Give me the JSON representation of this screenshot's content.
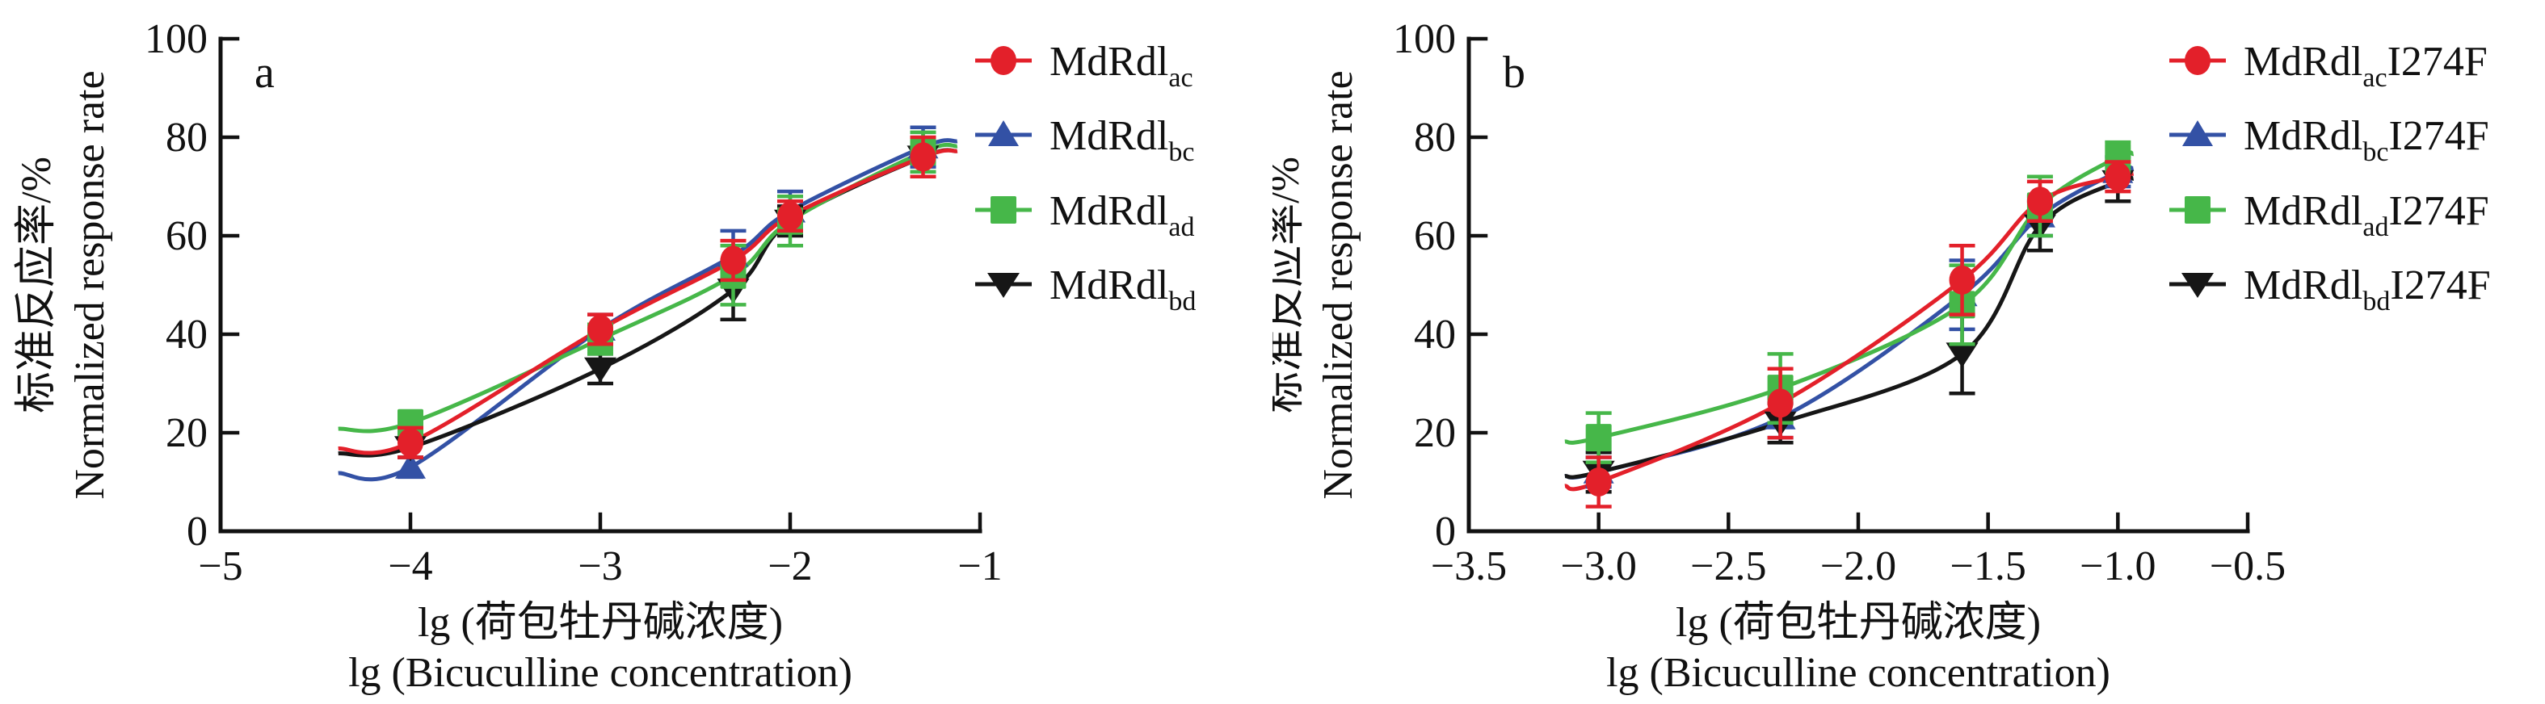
{
  "chart_data": [
    {
      "type": "line",
      "panel_label": "a",
      "xlabel_cn": "lg (荷包牡丹碱浓度)",
      "xlabel_en": "lg (Bicuculline concentration)",
      "ylabel_cn": "标准反应率/%",
      "ylabel_en": "Normalized response rate",
      "xlim": [
        -5,
        -1
      ],
      "ylim": [
        0,
        100
      ],
      "x_ticks": [
        -5,
        -4,
        -3,
        -2,
        -1
      ],
      "x_tick_labels": [
        "−5",
        "−4",
        "−3",
        "−2",
        "−1"
      ],
      "y_ticks": [
        0,
        20,
        40,
        60,
        80,
        100
      ],
      "y_tick_labels": [
        "0",
        "20",
        "40",
        "60",
        "80",
        "100"
      ],
      "legend_position": "right",
      "grid": false,
      "x": [
        -4,
        -3,
        -2.3,
        -2,
        -1.3
      ],
      "series": [
        {
          "name": "MdRdl",
          "sub": "ac",
          "suffix": "",
          "marker": "circle",
          "color": "#e3202a",
          "values": [
            18,
            41,
            55,
            64,
            76
          ],
          "errors": [
            3,
            3,
            4,
            3,
            4
          ]
        },
        {
          "name": "MdRdl",
          "sub": "bc",
          "suffix": "",
          "marker": "triangle-up",
          "color": "#3351a5",
          "values": [
            13,
            41,
            56,
            65,
            78
          ],
          "errors": [
            2,
            3,
            5,
            4,
            4
          ]
        },
        {
          "name": "MdRdl",
          "sub": "ad",
          "suffix": "",
          "marker": "square",
          "color": "#46b749",
          "values": [
            22,
            39,
            52,
            63,
            77
          ],
          "errors": [
            2,
            3,
            6,
            5,
            4
          ]
        },
        {
          "name": "MdRdl",
          "sub": "bd",
          "suffix": "",
          "marker": "triangle-down",
          "color": "#161616",
          "values": [
            17,
            33,
            49,
            63,
            76
          ],
          "errors": [
            2,
            3,
            6,
            3,
            3
          ]
        }
      ]
    },
    {
      "type": "line",
      "panel_label": "b",
      "xlabel_cn": "lg (荷包牡丹碱浓度)",
      "xlabel_en": "lg (Bicuculline concentration)",
      "ylabel_cn": "标准反应率/%",
      "ylabel_en": "Normalized response rate",
      "xlim": [
        -3.5,
        -0.5
      ],
      "ylim": [
        0,
        100
      ],
      "x_ticks": [
        -3.5,
        -3.0,
        -2.5,
        -2.0,
        -1.5,
        -1.0,
        -0.5
      ],
      "x_tick_labels": [
        "−3.5",
        "−3.0",
        "−2.5",
        "−2.0",
        "−1.5",
        "−1.0",
        "−0.5"
      ],
      "y_ticks": [
        0,
        20,
        40,
        60,
        80,
        100
      ],
      "y_tick_labels": [
        "0",
        "20",
        "40",
        "60",
        "80",
        "100"
      ],
      "legend_position": "right",
      "grid": false,
      "x": [
        -3.0,
        -2.3,
        -1.6,
        -1.3,
        -1.0
      ],
      "series": [
        {
          "name": "MdRdl",
          "sub": "ac",
          "suffix": "I274F",
          "marker": "circle",
          "color": "#e3202a",
          "values": [
            10,
            26,
            51,
            67,
            72
          ],
          "errors": [
            5,
            7,
            7,
            4,
            3
          ]
        },
        {
          "name": "MdRdl",
          "sub": "bc",
          "suffix": "I274F",
          "marker": "triangle-up",
          "color": "#3351a5",
          "values": [
            12,
            23,
            48,
            64,
            73
          ],
          "errors": [
            3,
            4,
            7,
            4,
            3
          ]
        },
        {
          "name": "MdRdl",
          "sub": "ad",
          "suffix": "I274F",
          "marker": "square",
          "color": "#46b749",
          "values": [
            19,
            29,
            46,
            66,
            76
          ],
          "errors": [
            5,
            7,
            8,
            6,
            3
          ]
        },
        {
          "name": "MdRdl",
          "sub": "bd",
          "suffix": "I274F",
          "marker": "triangle-down",
          "color": "#161616",
          "values": [
            12,
            22,
            36,
            62,
            71
          ],
          "errors": [
            4,
            4,
            8,
            5,
            4
          ]
        }
      ]
    }
  ]
}
